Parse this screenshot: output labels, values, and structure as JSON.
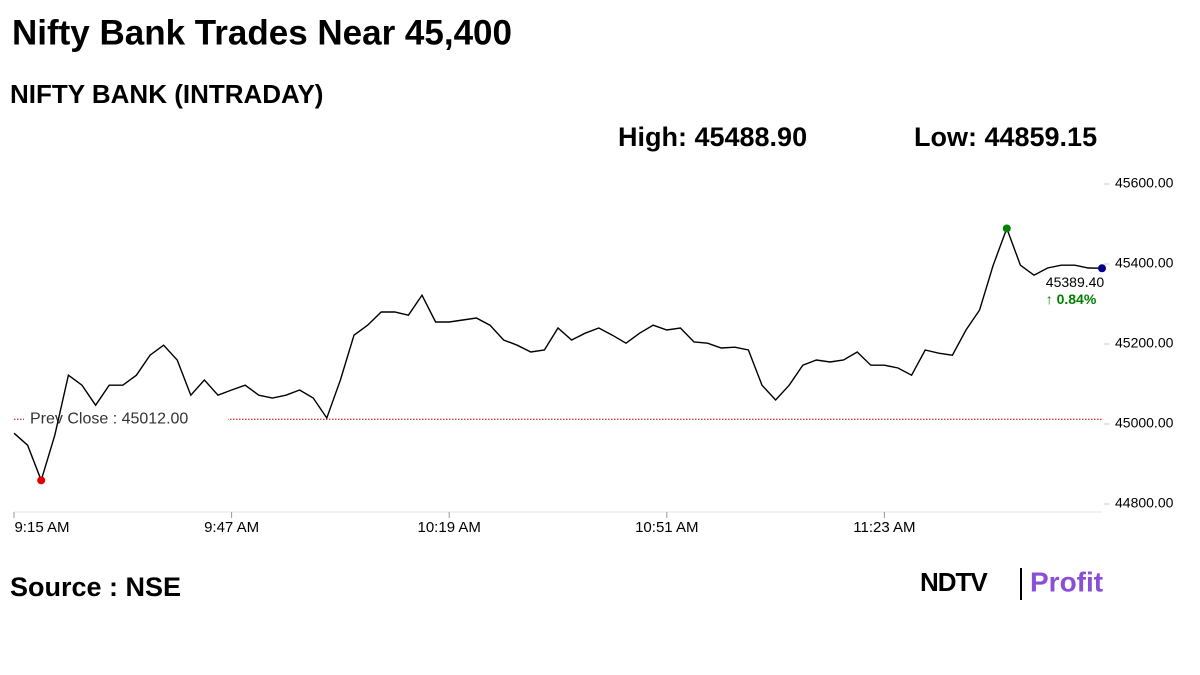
{
  "chart_data": {
    "type": "line",
    "title": "Nifty Bank Trades Near 45,400",
    "subtitle": "NIFTY BANK (INTRADAY)",
    "high_label": "High: 45488.90",
    "low_label": "Low: 44859.15",
    "source": "Source : NSE",
    "logo": [
      "NDTV",
      "Profit"
    ],
    "x": [
      "9:15 AM",
      "9:17 AM",
      "9:19 AM",
      "9:21 AM",
      "9:23 AM",
      "9:25 AM",
      "9:27 AM",
      "9:29 AM",
      "9:31 AM",
      "9:33 AM",
      "9:35 AM",
      "9:37 AM",
      "9:39 AM",
      "9:41 AM",
      "9:43 AM",
      "9:45 AM",
      "9:47 AM",
      "9:49 AM",
      "9:51 AM",
      "9:53 AM",
      "9:55 AM",
      "9:57 AM",
      "9:59 AM",
      "10:01 AM",
      "10:03 AM",
      "10:05 AM",
      "10:07 AM",
      "10:09 AM",
      "10:11 AM",
      "10:13 AM",
      "10:15 AM",
      "10:17 AM",
      "10:19 AM",
      "10:21 AM",
      "10:23 AM",
      "10:25 AM",
      "10:27 AM",
      "10:29 AM",
      "10:31 AM",
      "10:33 AM",
      "10:35 AM",
      "10:37 AM",
      "10:39 AM",
      "10:41 AM",
      "10:43 AM",
      "10:45 AM",
      "10:47 AM",
      "10:49 AM",
      "10:51 AM",
      "10:53 AM",
      "10:55 AM",
      "10:57 AM",
      "10:59 AM",
      "11:01 AM",
      "11:03 AM",
      "11:05 AM",
      "11:07 AM",
      "11:09 AM",
      "11:11 AM",
      "11:13 AM",
      "11:15 AM",
      "11:17 AM",
      "11:19 AM",
      "11:21 AM",
      "11:23 AM",
      "11:25 AM",
      "11:27 AM",
      "11:29 AM",
      "11:31 AM",
      "11:33 AM",
      "11:35 AM",
      "11:37 AM",
      "11:39 AM",
      "11:41 AM",
      "11:43 AM",
      "11:45 AM",
      "11:47 AM",
      "11:49 AM",
      "11:51 AM",
      "11:53 AM",
      "11:55 AM"
    ],
    "series": [
      {
        "name": "NIFTY BANK",
        "color": "#000000",
        "values": [
          44977,
          44947,
          44859.15,
          44972,
          45122,
          45097,
          45047,
          45097,
          45097,
          45122,
          45172,
          45197,
          45160,
          45072,
          45110,
          45072,
          45085,
          45097,
          45072,
          45065,
          45072,
          45085,
          45065,
          45015,
          45110,
          45222,
          45247,
          45280,
          45280,
          45272,
          45322,
          45255,
          45255,
          45260,
          45265,
          45247,
          45210,
          45197,
          45180,
          45185,
          45240,
          45210,
          45227,
          45240,
          45222,
          45202,
          45227,
          45247,
          45235,
          45240,
          45205,
          45202,
          45190,
          45192,
          45185,
          45097,
          45060,
          45097,
          45147,
          45160,
          45155,
          45160,
          45180,
          45147,
          45147,
          45140,
          45122,
          45185,
          45177,
          45172,
          45235,
          45285,
          45397,
          45488.9,
          45397,
          45372,
          45390,
          45397,
          45397,
          45390,
          45389.4
        ]
      }
    ],
    "low_index": 2,
    "low_color": "#e00000",
    "high_index": 73,
    "high_color": "#008000",
    "last_color": "#00008b",
    "prev_close": {
      "value": 45012,
      "label": "Prev Close : 45012.00",
      "color": "#c00000"
    },
    "current": {
      "label": "45389.40",
      "change": 0.84,
      "change_label": "↑ 0.84%",
      "change_color": "#008000"
    },
    "xticks": [
      "9:15 AM",
      "9:47 AM",
      "10:19 AM",
      "10:51 AM",
      "11:23 AM"
    ],
    "ylim": [
      44800,
      45600
    ],
    "yticks": [
      {
        "value": 44800,
        "label": "44800.00"
      },
      {
        "value": 45000,
        "label": "45000.00"
      },
      {
        "value": 45200,
        "label": "45200.00"
      },
      {
        "value": 45400,
        "label": "45400.00"
      },
      {
        "value": 45600,
        "label": "45600.00"
      }
    ]
  }
}
